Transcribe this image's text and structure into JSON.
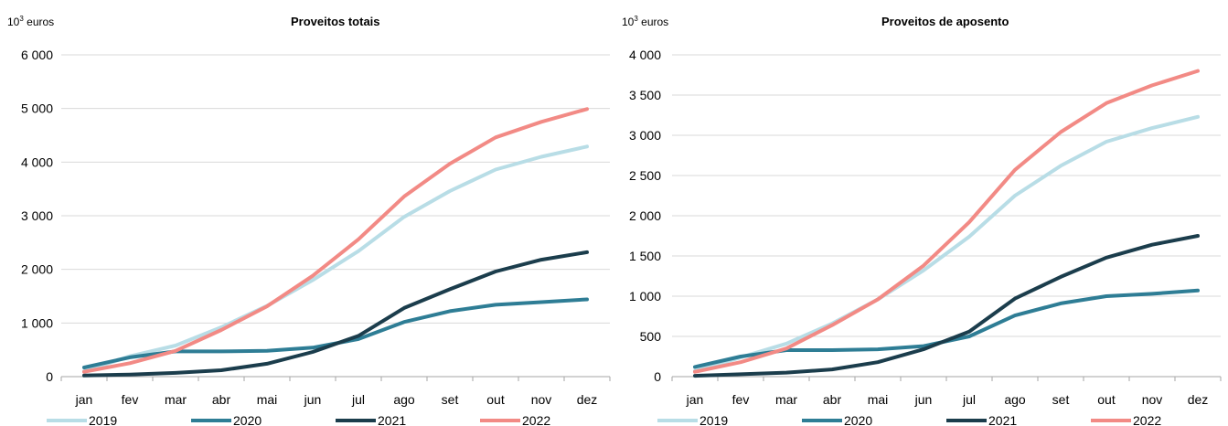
{
  "chart_data": [
    {
      "type": "line",
      "title": "Proveitos totais",
      "unit_base": "10",
      "unit_exp": "3",
      "unit_text": " euros",
      "categories": [
        "jan",
        "fev",
        "mar",
        "abr",
        "mai",
        "jun",
        "jul",
        "ago",
        "set",
        "out",
        "nov",
        "dez"
      ],
      "ylim": [
        0,
        6000
      ],
      "yticks": [
        0,
        1000,
        2000,
        3000,
        4000,
        5000,
        6000
      ],
      "ytick_labels": [
        "0",
        "1 000",
        "2 000",
        "3 000",
        "4 000",
        "5 000",
        "6 000"
      ],
      "grid": true,
      "legend_position": "bottom",
      "series": [
        {
          "name": "2019",
          "color": "#b8dde6",
          "values": [
            100,
            380,
            580,
            920,
            1320,
            1800,
            2340,
            2980,
            3460,
            3860,
            4100,
            4290
          ]
        },
        {
          "name": "2020",
          "color": "#2e7d95",
          "values": [
            170,
            360,
            470,
            470,
            480,
            540,
            700,
            1020,
            1220,
            1340,
            1390,
            1440
          ]
        },
        {
          "name": "2021",
          "color": "#1b3d4c",
          "values": [
            20,
            40,
            70,
            120,
            240,
            460,
            760,
            1280,
            1630,
            1960,
            2180,
            2320
          ]
        },
        {
          "name": "2022",
          "color": "#f28a85",
          "values": [
            90,
            250,
            480,
            870,
            1310,
            1880,
            2560,
            3360,
            3970,
            4460,
            4750,
            4990
          ]
        }
      ]
    },
    {
      "type": "line",
      "title": "Proveitos de aposento",
      "unit_base": "10",
      "unit_exp": "3",
      "unit_text": " euros",
      "categories": [
        "jan",
        "fev",
        "mar",
        "abr",
        "mai",
        "jun",
        "jul",
        "ago",
        "set",
        "out",
        "nov",
        "dez"
      ],
      "ylim": [
        0,
        4000
      ],
      "yticks": [
        0,
        500,
        1000,
        1500,
        2000,
        2500,
        3000,
        3500,
        4000
      ],
      "ytick_labels": [
        "0",
        "500",
        "1 000",
        "1 500",
        "2 000",
        "2 500",
        "3 000",
        "3 500",
        "4 000"
      ],
      "grid": true,
      "legend_position": "bottom",
      "series": [
        {
          "name": "2019",
          "color": "#b8dde6",
          "values": [
            70,
            240,
            410,
            660,
            960,
            1320,
            1740,
            2250,
            2620,
            2920,
            3090,
            3230
          ]
        },
        {
          "name": "2020",
          "color": "#2e7d95",
          "values": [
            120,
            250,
            330,
            330,
            340,
            380,
            500,
            760,
            910,
            1000,
            1030,
            1070
          ]
        },
        {
          "name": "2021",
          "color": "#1b3d4c",
          "values": [
            10,
            30,
            50,
            90,
            180,
            340,
            560,
            970,
            1240,
            1480,
            1640,
            1750
          ]
        },
        {
          "name": "2022",
          "color": "#f28a85",
          "values": [
            60,
            180,
            350,
            640,
            960,
            1380,
            1920,
            2570,
            3040,
            3400,
            3620,
            3800
          ]
        }
      ]
    }
  ]
}
